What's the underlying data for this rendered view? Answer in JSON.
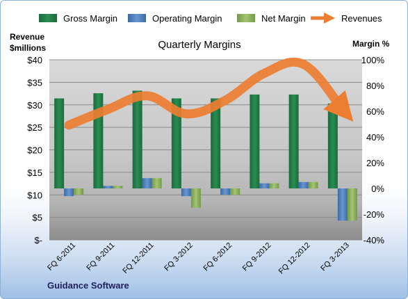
{
  "chart_data": {
    "type": "bar",
    "title": "Quarterly Margins",
    "footer": "Guidance Software",
    "categories": [
      "FQ 6-2011",
      "FQ 9-2011",
      "FQ 12-2011",
      "FQ 3-2012",
      "FQ 6-2012",
      "FQ 9-2012",
      "FQ 12-2012",
      "FQ 3-2013"
    ],
    "series": [
      {
        "name": "Gross Margin",
        "type": "bar",
        "axis": "right",
        "color": "#1f7a45",
        "values": [
          70,
          74,
          76,
          70,
          70,
          73,
          73,
          66
        ]
      },
      {
        "name": "Operating Margin",
        "type": "bar",
        "axis": "right",
        "color": "#4f7fbf",
        "values": [
          -6,
          2,
          8,
          -6,
          -5,
          4,
          5,
          -25
        ]
      },
      {
        "name": "Net Margin",
        "type": "bar",
        "axis": "right",
        "color": "#8db05a",
        "values": [
          -5,
          2,
          8,
          -15,
          -5,
          4,
          5,
          -25
        ]
      },
      {
        "name": "Revenues",
        "type": "line",
        "axis": "left",
        "color": "#ed7d31",
        "values": [
          25.5,
          29,
          32,
          28,
          31,
          37,
          39,
          29
        ]
      }
    ],
    "y_left": {
      "label_line1": "Revenue",
      "label_line2": "$millions",
      "range": [
        0,
        40
      ],
      "ticks": [
        "$-",
        "$5",
        "$10",
        "$15",
        "$20",
        "$25",
        "$30",
        "$35",
        "$40"
      ]
    },
    "y_right": {
      "label": "Margin %",
      "range": [
        -40,
        100
      ],
      "ticks": [
        "-40%",
        "-20%",
        "0%",
        "20%",
        "40%",
        "60%",
        "80%",
        "100%"
      ]
    },
    "legend_position": "top",
    "grid": true
  }
}
